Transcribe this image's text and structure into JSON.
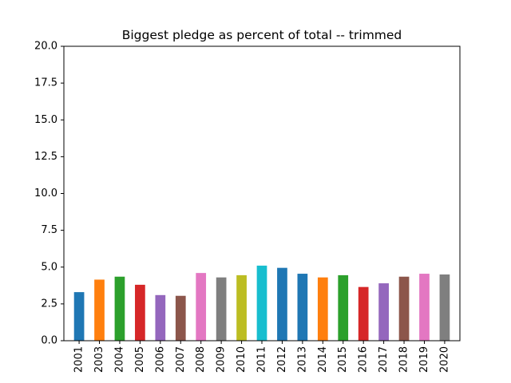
{
  "chart_data": {
    "type": "bar",
    "title": "Biggest pledge as percent of total -- trimmed",
    "xlabel": "",
    "ylabel": "",
    "ylim": [
      0,
      20
    ],
    "yticks": [
      "0.0",
      "2.5",
      "5.0",
      "7.5",
      "10.0",
      "12.5",
      "15.0",
      "17.5",
      "20.0"
    ],
    "grid": false,
    "legend": "none",
    "categories": [
      "2001",
      "2003",
      "2004",
      "2005",
      "2006",
      "2007",
      "2008",
      "2009",
      "2010",
      "2011",
      "2012",
      "2013",
      "2014",
      "2015",
      "2016",
      "2017",
      "2018",
      "2019",
      "2020"
    ],
    "values": [
      3.3,
      4.15,
      4.35,
      3.8,
      3.1,
      3.05,
      4.6,
      4.3,
      4.45,
      5.1,
      4.95,
      4.55,
      4.3,
      4.45,
      3.65,
      3.9,
      4.35,
      4.55,
      4.5
    ],
    "colors": [
      "#1f77b4",
      "#ff7f0e",
      "#2ca02c",
      "#d62728",
      "#9467bd",
      "#8c564b",
      "#e377c2",
      "#7f7f7f",
      "#bcbd22",
      "#17becf",
      "#1f77b4",
      "#1f77b4",
      "#ff7f0e",
      "#2ca02c",
      "#d62728",
      "#9467bd",
      "#8c564b",
      "#e377c2",
      "#7f7f7f"
    ]
  }
}
